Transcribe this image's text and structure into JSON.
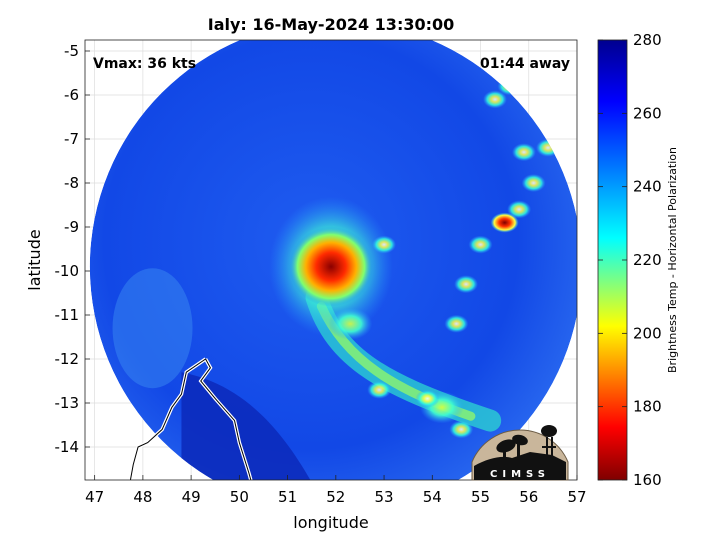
{
  "chart_data": {
    "type": "heatmap",
    "title": "Ialy: 16-May-2024 13:30:00",
    "xlabel": "longitude",
    "ylabel": "latitude",
    "xlim": [
      46.8,
      57.0
    ],
    "ylim": [
      -14.75,
      -4.75
    ],
    "y_axis_reversed": true,
    "x_ticks": [
      47,
      48,
      49,
      50,
      51,
      52,
      53,
      54,
      55,
      56,
      57
    ],
    "y_ticks": [
      -5,
      -6,
      -7,
      -8,
      -9,
      -10,
      -11,
      -12,
      -13,
      -14
    ],
    "grid": true,
    "annotations": {
      "vmax": "Vmax: 36 kts",
      "time_away": "01:44 away"
    },
    "colorbar": {
      "label": "Brightness Temp - Horizontal Polarization",
      "range": [
        160,
        280
      ],
      "ticks": [
        160,
        180,
        200,
        220,
        240,
        260,
        280
      ],
      "colormap": "jet",
      "colors": [
        "#7f0000",
        "#ff0000",
        "#ffff00",
        "#00ffff",
        "#0080ff",
        "#0000ff",
        "#00008f"
      ]
    },
    "swath": {
      "center_lon": 52.0,
      "center_lat": -9.9,
      "radius_deg_lon": 5.1,
      "background_temp": 262
    },
    "features": [
      {
        "name": "storm core",
        "lon": 51.9,
        "lat": -9.9,
        "min_temp": 165
      },
      {
        "name": "inner rainband",
        "lon": 52.3,
        "lat": -11.2,
        "min_temp": 215
      },
      {
        "name": "southern rainband",
        "lon": 54.2,
        "lat": -13.1,
        "min_temp": 220
      },
      {
        "name": "eastern convection",
        "lon": 55.5,
        "lat": -8.9,
        "min_temp": 185
      }
    ],
    "logo_text": "CIMSS"
  }
}
